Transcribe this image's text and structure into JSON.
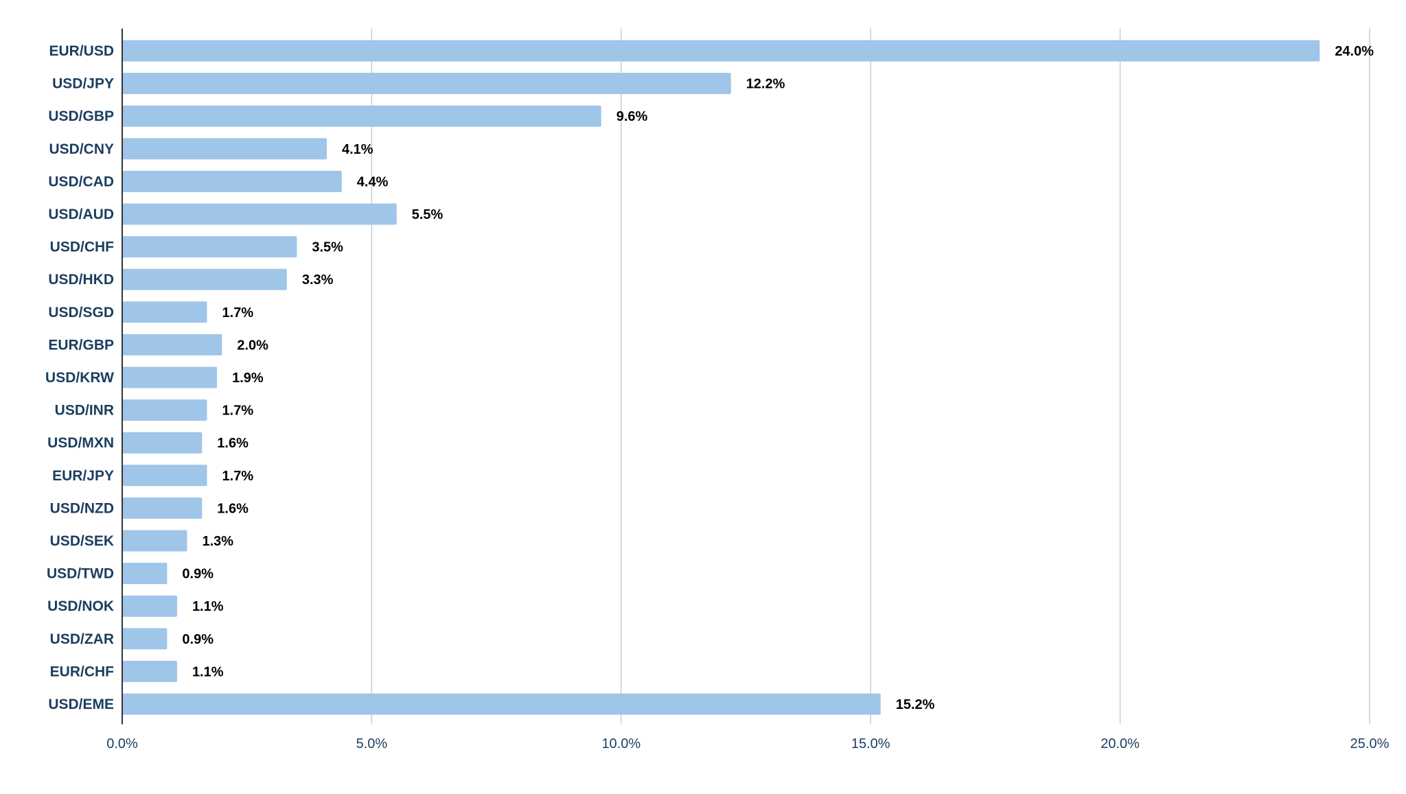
{
  "chart_data": {
    "type": "bar",
    "orientation": "horizontal",
    "title": "",
    "xlabel": "",
    "ylabel": "",
    "categories": [
      "EUR/USD",
      "USD/JPY",
      "USD/GBP",
      "USD/CNY",
      "USD/CAD",
      "USD/AUD",
      "USD/CHF",
      "USD/HKD",
      "USD/SGD",
      "EUR/GBP",
      "USD/KRW",
      "USD/INR",
      "USD/MXN",
      "EUR/JPY",
      "USD/NZD",
      "USD/SEK",
      "USD/TWD",
      "USD/NOK",
      "USD/ZAR",
      "EUR/CHF",
      "USD/EME"
    ],
    "values": [
      24.0,
      12.2,
      9.6,
      4.1,
      4.4,
      5.5,
      3.5,
      3.3,
      1.7,
      2.0,
      1.9,
      1.7,
      1.6,
      1.7,
      1.6,
      1.3,
      0.9,
      1.1,
      0.9,
      1.1,
      15.2
    ],
    "value_labels": [
      "24.0%",
      "12.2%",
      "9.6%",
      "4.1%",
      "4.4%",
      "5.5%",
      "3.5%",
      "3.3%",
      "1.7%",
      "2.0%",
      "1.9%",
      "1.7%",
      "1.6%",
      "1.7%",
      "1.6%",
      "1.3%",
      "0.9%",
      "1.1%",
      "0.9%",
      "1.1%",
      "15.2%"
    ],
    "xlim": [
      0,
      25
    ],
    "x_ticks": [
      0,
      5,
      10,
      15,
      20,
      25
    ],
    "x_tick_labels": [
      "0.0%",
      "5.0%",
      "10.0%",
      "15.0%",
      "20.0%",
      "25.0%"
    ],
    "grid": "vertical",
    "legend": "none",
    "colors": {
      "bar": "#9fc5e8",
      "grid": "#cccccc",
      "axis": "#333333",
      "category_text": "#1c3d5e",
      "value_text": "#000000",
      "tick_text": "#1c3d5e"
    }
  }
}
